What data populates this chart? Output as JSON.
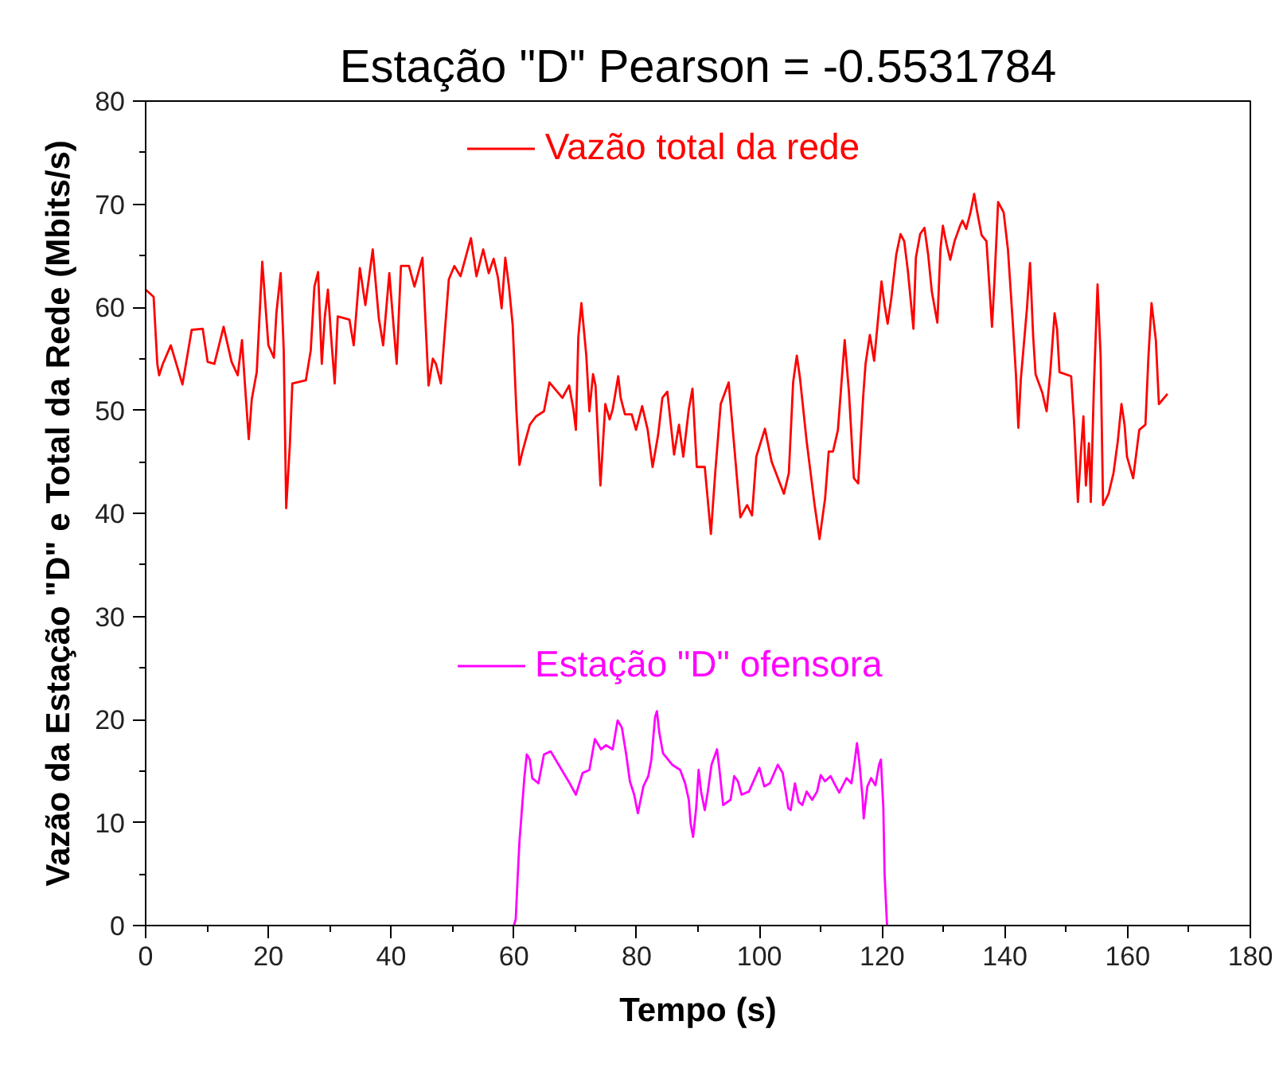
{
  "chart_data": {
    "type": "line",
    "title": "Estação \"D\" Pearson = -0.5531784",
    "xlabel": "Tempo (s)",
    "ylabel": "Vazão da Estação \"D\" e Total da Rede (Mbits/s)",
    "xlim": [
      0,
      180
    ],
    "ylim": [
      0,
      80
    ],
    "xticks": [
      0,
      {
        "value": 10,
        "label": null
      },
      20,
      {
        "value": 30,
        "label": null
      },
      40,
      {
        "value": 50,
        "label": null
      },
      60,
      {
        "value": 70,
        "label": null
      },
      80,
      {
        "value": 90,
        "label": null
      },
      100,
      {
        "value": 110,
        "label": null
      },
      120,
      {
        "value": 130,
        "label": null
      },
      140,
      {
        "value": 150,
        "label": null
      },
      160,
      {
        "value": 170,
        "label": null
      },
      180
    ],
    "yticks": [
      0,
      {
        "value": 5,
        "label": null
      },
      10,
      {
        "value": 15,
        "label": null
      },
      20,
      {
        "value": 25,
        "label": null
      },
      30,
      {
        "value": 35,
        "label": null
      },
      40,
      {
        "value": 45,
        "label": null
      },
      50,
      {
        "value": 55,
        "label": null
      },
      60,
      {
        "value": 65,
        "label": null
      },
      70,
      {
        "value": 75,
        "label": null
      },
      80
    ],
    "grid": false,
    "legend": "top",
    "line_style": "solid",
    "series": [
      {
        "name": "Vazão total da rede",
        "color": "#ff0000",
        "x": [
          0,
          1.3,
          1.9,
          2.2,
          2.8,
          4.1,
          6.0,
          7.5,
          9.3,
          10.1,
          11.2,
          12.7,
          14.0,
          15.0,
          15.7,
          16.1,
          16.8,
          17.3,
          18.1,
          19.0,
          19.3,
          20.0,
          20.9,
          21.3,
          22.0,
          22.5,
          22.9,
          23.5,
          23.9,
          26.1,
          26.9,
          27.5,
          28.1,
          28.7,
          29.2,
          29.7,
          30.2,
          30.8,
          31.3,
          33.2,
          33.9,
          34.9,
          35.8,
          37.0,
          38.0,
          38.7,
          39.7,
          40.9,
          41.6,
          42.9,
          43.8,
          45.1,
          46.1,
          46.8,
          47.3,
          48.1,
          49.4,
          50.3,
          51.3,
          53.0,
          53.9,
          55.0,
          55.9,
          56.7,
          57.4,
          58.0,
          58.6,
          59.2,
          59.8,
          60.4,
          60.9,
          61.4,
          62.6,
          63.6,
          64.9,
          65.8,
          67.9,
          69.0,
          69.7,
          70.1,
          70.5,
          71.0,
          71.8,
          72.3,
          72.9,
          73.3,
          74.1,
          74.9,
          75.6,
          76.1,
          77.0,
          77.4,
          78.1,
          79.2,
          79.9,
          80.9,
          81.8,
          82.6,
          83.5,
          84.2,
          85.0,
          86.1,
          86.9,
          87.6,
          88.5,
          89.1,
          89.8,
          91.1,
          92.1,
          92.8,
          93.7,
          95.0,
          95.6,
          96.9,
          98.0,
          98.8,
          99.5,
          100.9,
          102.0,
          104.0,
          104.8,
          105.5,
          106.1,
          106.6,
          107.7,
          109.0,
          109.8,
          110.7,
          111.3,
          112.0,
          112.8,
          113.9,
          114.6,
          115.4,
          116.1,
          116.9,
          117.3,
          118.0,
          118.7,
          119.3,
          119.9,
          120.4,
          120.9,
          121.5,
          122.3,
          123.0,
          123.6,
          124.2,
          125.1,
          125.5,
          126.2,
          126.9,
          127.5,
          128.1,
          129.0,
          129.5,
          129.9,
          130.5,
          131.1,
          131.8,
          132.7,
          133.1,
          133.7,
          134.4,
          135.0,
          135.5,
          136.2,
          137.0,
          137.9,
          138.3,
          138.9,
          139.8,
          140.5,
          141.3,
          141.8,
          142.2,
          142.6,
          143.6,
          144.1,
          144.6,
          145.0,
          146.1,
          146.8,
          147.4,
          148.1,
          148.5,
          148.9,
          150.8,
          151.3,
          151.9,
          152.4,
          152.8,
          153.2,
          153.7,
          154.0,
          154.5,
          155.1,
          155.6,
          156.0,
          156.9,
          157.7,
          158.4,
          159.0,
          159.5,
          159.9,
          160.9,
          161.9,
          162.9,
          163.4,
          163.9,
          164.6,
          165.1,
          166.5
        ],
        "values": [
          61.7,
          61.0,
          54.5,
          53.4,
          54.5,
          56.3,
          52.5,
          57.8,
          57.9,
          54.7,
          54.5,
          58.1,
          54.7,
          53.4,
          56.8,
          53.2,
          47.2,
          51.1,
          53.7,
          64.4,
          62.0,
          56.3,
          55.1,
          59.4,
          63.3,
          55.8,
          40.5,
          46.7,
          52.6,
          52.9,
          55.8,
          62.0,
          63.4,
          54.5,
          59.1,
          61.7,
          57.3,
          52.6,
          59.1,
          58.8,
          56.3,
          63.8,
          60.2,
          65.6,
          58.9,
          56.3,
          63.3,
          54.5,
          64.0,
          64.0,
          62.0,
          64.8,
          52.4,
          55.0,
          54.5,
          52.6,
          62.7,
          64.0,
          63.0,
          66.7,
          63.0,
          65.6,
          63.3,
          64.7,
          62.9,
          59.9,
          64.8,
          62.0,
          58.3,
          50.1,
          44.7,
          46.0,
          48.6,
          49.4,
          49.9,
          52.7,
          51.2,
          52.4,
          50.1,
          48.1,
          57.1,
          60.4,
          55.3,
          49.9,
          53.5,
          52.4,
          42.7,
          50.6,
          49.1,
          50.1,
          53.3,
          51.2,
          49.6,
          49.6,
          48.1,
          50.4,
          48.1,
          44.5,
          47.6,
          51.2,
          51.8,
          45.7,
          48.6,
          45.5,
          50.1,
          52.1,
          44.5,
          44.5,
          38.0,
          43.9,
          50.6,
          52.7,
          48.6,
          39.6,
          40.8,
          39.8,
          45.5,
          48.2,
          45.0,
          41.9,
          43.9,
          52.7,
          55.3,
          53.2,
          47.0,
          40.8,
          37.5,
          41.4,
          46.0,
          46.0,
          48.1,
          56.8,
          51.7,
          43.4,
          42.9,
          51.2,
          54.5,
          57.3,
          54.8,
          58.6,
          62.5,
          60.2,
          58.4,
          60.9,
          65.1,
          67.1,
          66.4,
          63.5,
          57.9,
          64.8,
          67.1,
          67.7,
          65.1,
          61.5,
          58.5,
          65.6,
          67.9,
          66.1,
          64.6,
          66.4,
          67.9,
          68.4,
          67.6,
          69.2,
          71.0,
          69.2,
          67.0,
          66.4,
          58.1,
          62.5,
          70.2,
          69.2,
          65.6,
          58.4,
          53.5,
          48.3,
          53.0,
          59.9,
          64.3,
          57.3,
          53.5,
          51.7,
          49.9,
          53.7,
          59.4,
          57.9,
          53.7,
          53.3,
          48.6,
          41.1,
          46.0,
          49.4,
          42.7,
          46.8,
          41.1,
          52.2,
          62.2,
          55.3,
          40.8,
          41.9,
          43.9,
          47.0,
          50.6,
          48.6,
          45.5,
          43.4,
          48.1,
          48.6,
          55.3,
          60.4,
          56.8,
          50.6,
          51.6
        ]
      },
      {
        "name": "Estação \"D\" ofensora",
        "color": "#ff00ff",
        "x": [
          60,
          60.3,
          60.6,
          60.9,
          61.3,
          61.7,
          62.1,
          62.6,
          63.0,
          64.0,
          64.9,
          66.0,
          67.3,
          68.9,
          70.1,
          71.2,
          72.3,
          73.2,
          74.2,
          75.0,
          76.1,
          76.9,
          77.6,
          78.3,
          78.9,
          79.6,
          80.2,
          81.1,
          81.9,
          82.4,
          83.0,
          83.3,
          83.7,
          84.3,
          85.8,
          87.1,
          87.9,
          88.5,
          88.8,
          89.2,
          89.7,
          90.1,
          90.5,
          91.1,
          91.6,
          92.2,
          93.1,
          93.5,
          94.1,
          95.3,
          95.9,
          96.5,
          97.1,
          98.3,
          100.0,
          100.8,
          101.7,
          103.0,
          103.8,
          104.7,
          105.1,
          105.8,
          106.4,
          107.0,
          107.7,
          108.6,
          109.4,
          110.0,
          110.7,
          111.6,
          112.2,
          113.0,
          114.2,
          115.0,
          115.5,
          115.9,
          116.3,
          116.8,
          117.0,
          117.6,
          118.2,
          118.9,
          119.5,
          119.8,
          120.2,
          120.4,
          120.8
        ],
        "values": [
          0,
          0.6,
          4.5,
          8.1,
          11.2,
          14.3,
          16.6,
          16.1,
          14.3,
          13.8,
          16.6,
          16.9,
          15.6,
          14.0,
          12.7,
          14.8,
          15.1,
          18.1,
          17.1,
          17.5,
          17.1,
          19.9,
          19.2,
          16.6,
          14.0,
          12.7,
          10.9,
          13.5,
          14.5,
          16.1,
          20.2,
          20.8,
          18.7,
          16.7,
          15.6,
          15.1,
          13.8,
          12.2,
          9.9,
          8.6,
          11.4,
          15.1,
          13.0,
          11.2,
          13.0,
          15.6,
          17.1,
          15.1,
          11.7,
          12.2,
          14.5,
          14.0,
          12.7,
          13.0,
          15.3,
          13.5,
          13.8,
          15.6,
          14.8,
          11.4,
          11.2,
          13.8,
          12.0,
          11.7,
          13.0,
          12.2,
          13.0,
          14.6,
          14.0,
          14.5,
          13.8,
          12.9,
          14.3,
          13.8,
          15.8,
          17.7,
          15.8,
          12.5,
          10.4,
          13.5,
          14.3,
          13.6,
          15.6,
          16.1,
          11.4,
          5.0,
          0
        ]
      }
    ]
  }
}
